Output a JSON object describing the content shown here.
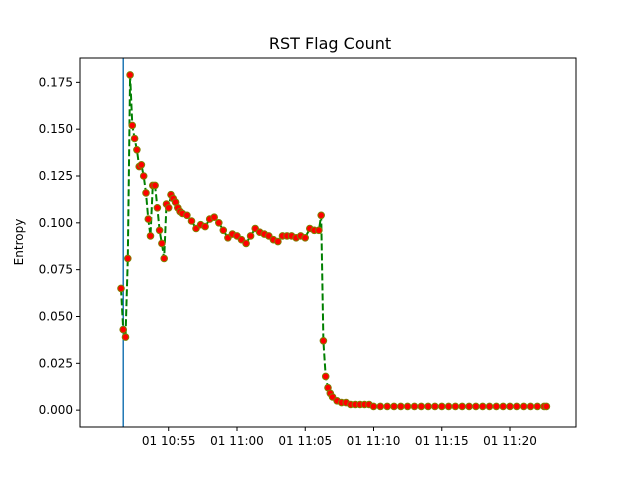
{
  "chart_data": {
    "type": "line",
    "title": "RST Flag Count",
    "xlabel": "",
    "ylabel": "Entropy",
    "x_unit": "minute",
    "xlim": [
      "01 10:48:30",
      "01 11:24:50"
    ],
    "ylim": [
      -0.009,
      0.188
    ],
    "x_ticks": [
      "01 10:55",
      "01 11:00",
      "01 11:05",
      "01 11:10",
      "01 11:15",
      "01 11:20"
    ],
    "y_ticks": [
      "0.000",
      "0.025",
      "0.050",
      "0.075",
      "0.100",
      "0.125",
      "0.150",
      "0.175"
    ],
    "grid": false,
    "legend": "none",
    "vertical_line_x": "01 10:51:40",
    "colors": {
      "line": "#008000",
      "marker_face": "#ff0000",
      "marker_edge": "#808000",
      "vline": "#1f77b4"
    },
    "series": [
      {
        "x": [
          "01 10:51:30",
          "01 10:51:40",
          "01 10:51:50",
          "01 10:52:00",
          "01 10:52:10",
          "01 10:52:20",
          "01 10:52:30",
          "01 10:52:40",
          "01 10:52:50",
          "01 10:53:00",
          "01 10:53:10",
          "01 10:53:20",
          "01 10:53:30",
          "01 10:53:40",
          "01 10:53:50",
          "01 10:54:00",
          "01 10:54:10",
          "01 10:54:20",
          "01 10:54:30",
          "01 10:54:40",
          "01 10:54:50",
          "01 10:55:00",
          "01 10:55:10",
          "01 10:55:20",
          "01 10:55:30",
          "01 10:55:40",
          "01 10:55:50",
          "01 10:56:00",
          "01 10:56:20",
          "01 10:56:40",
          "01 10:57:00",
          "01 10:57:20",
          "01 10:57:40",
          "01 10:58:00",
          "01 10:58:20",
          "01 10:58:40",
          "01 10:59:00",
          "01 10:59:20",
          "01 10:59:40",
          "01 11:00:00",
          "01 11:00:20",
          "01 11:00:40",
          "01 11:01:00",
          "01 11:01:20",
          "01 11:01:40",
          "01 11:02:00",
          "01 11:02:20",
          "01 11:02:40",
          "01 11:03:00",
          "01 11:03:20",
          "01 11:03:40",
          "01 11:04:00",
          "01 11:04:20",
          "01 11:04:40",
          "01 11:05:00",
          "01 11:05:20",
          "01 11:05:40",
          "01 11:06:00",
          "01 11:06:10",
          "01 11:06:20",
          "01 11:06:30",
          "01 11:06:40",
          "01 11:06:50",
          "01 11:07:00",
          "01 11:07:20",
          "01 11:07:40",
          "01 11:08:00",
          "01 11:08:20",
          "01 11:08:40",
          "01 11:09:00",
          "01 11:09:20",
          "01 11:09:40",
          "01 11:10:00",
          "01 11:10:30",
          "01 11:11:00",
          "01 11:11:30",
          "01 11:12:00",
          "01 11:12:30",
          "01 11:13:00",
          "01 11:13:30",
          "01 11:14:00",
          "01 11:14:30",
          "01 11:15:00",
          "01 11:15:30",
          "01 11:16:00",
          "01 11:16:30",
          "01 11:17:00",
          "01 11:17:30",
          "01 11:18:00",
          "01 11:18:30",
          "01 11:19:00",
          "01 11:19:30",
          "01 11:20:00",
          "01 11:20:30",
          "01 11:21:00",
          "01 11:21:30",
          "01 11:22:00",
          "01 11:22:30",
          "01 11:22:40"
        ],
        "values": [
          0.065,
          0.043,
          0.039,
          0.081,
          0.179,
          0.152,
          0.145,
          0.139,
          0.13,
          0.131,
          0.125,
          0.116,
          0.102,
          0.093,
          0.12,
          0.12,
          0.108,
          0.096,
          0.089,
          0.081,
          0.11,
          0.108,
          0.115,
          0.113,
          0.111,
          0.108,
          0.106,
          0.105,
          0.104,
          0.101,
          0.097,
          0.099,
          0.098,
          0.102,
          0.103,
          0.1,
          0.096,
          0.092,
          0.094,
          0.093,
          0.091,
          0.089,
          0.093,
          0.097,
          0.095,
          0.094,
          0.093,
          0.091,
          0.09,
          0.093,
          0.093,
          0.093,
          0.092,
          0.093,
          0.092,
          0.097,
          0.096,
          0.096,
          0.104,
          0.037,
          0.018,
          0.012,
          0.009,
          0.007,
          0.005,
          0.004,
          0.004,
          0.003,
          0.003,
          0.003,
          0.003,
          0.003,
          0.002,
          0.002,
          0.002,
          0.002,
          0.002,
          0.002,
          0.002,
          0.002,
          0.002,
          0.002,
          0.002,
          0.002,
          0.002,
          0.002,
          0.002,
          0.002,
          0.002,
          0.002,
          0.002,
          0.002,
          0.002,
          0.002,
          0.002,
          0.002,
          0.002,
          0.002,
          0.002
        ]
      }
    ]
  }
}
